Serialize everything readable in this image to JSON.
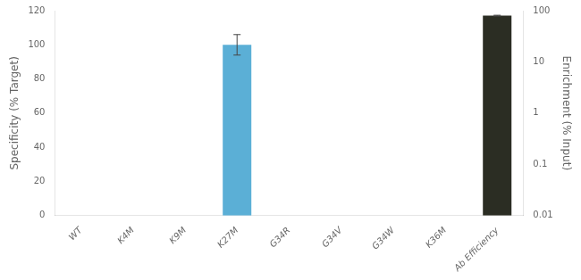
{
  "chart_data": {
    "type": "bar",
    "categories": [
      "WT",
      "K4M",
      "K9M",
      "K27M",
      "G34R",
      "G34V",
      "G34W",
      "K36M",
      "Ab Efficiency"
    ],
    "series": [
      {
        "color": "#5bafd6",
        "values": [
          0,
          0,
          0,
          100,
          0,
          0,
          0,
          0,
          null
        ],
        "errors": [
          0,
          0,
          0,
          6,
          0,
          0,
          0,
          0,
          null
        ]
      },
      {
        "color": "#2b2d23",
        "values": [
          null,
          null,
          null,
          null,
          null,
          null,
          null,
          null,
          80
        ],
        "errors": [
          null,
          null,
          null,
          null,
          null,
          null,
          null,
          null,
          1.5
        ],
        "axis": "y2"
      }
    ],
    "ylabel": "Specificity (% Target)",
    "y2label": "Enrichment (% Input)",
    "ylim": [
      0,
      120
    ],
    "yticks": [
      0,
      20,
      40,
      60,
      80,
      100,
      120
    ],
    "y2lim": [
      0.01,
      100
    ],
    "y2ticks": [
      0.01,
      0.1,
      1,
      10,
      100
    ],
    "log": "y2",
    "grid": false
  }
}
